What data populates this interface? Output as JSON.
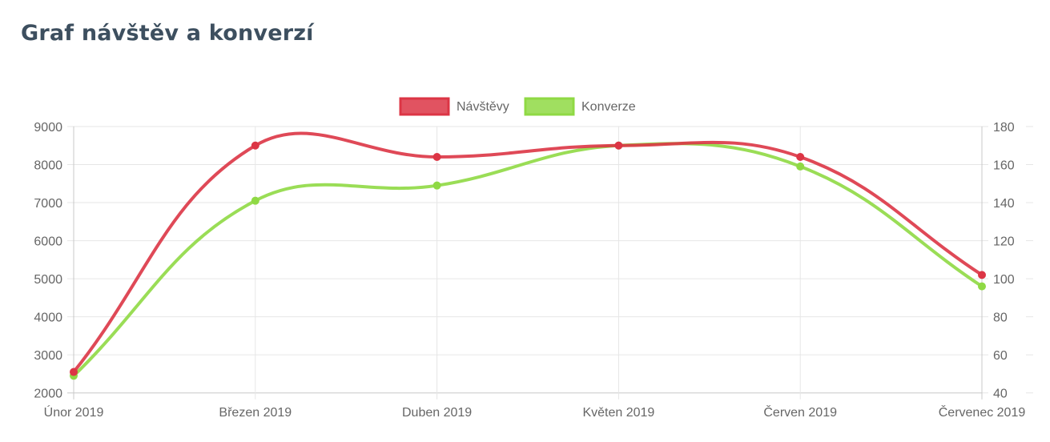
{
  "title": "Graf návštěv a konverzí",
  "chart_data": {
    "type": "line",
    "categories": [
      "Únor 2019",
      "Březen 2019",
      "Duben 2019",
      "Květen 2019",
      "Červen 2019",
      "Červenec 2019"
    ],
    "series": [
      {
        "name": "Návštěvy",
        "axis": "left",
        "color": "#dc3545",
        "values": [
          2550,
          8500,
          8200,
          8500,
          8200,
          5100
        ]
      },
      {
        "name": "Konverze",
        "axis": "right",
        "color": "#8fd944",
        "values": [
          49,
          141,
          149,
          170,
          159,
          96
        ]
      }
    ],
    "y_left": {
      "min": 2000,
      "max": 9000,
      "ticks": [
        "9000",
        "8000",
        "7000",
        "6000",
        "5000",
        "4000",
        "3000",
        "2000"
      ]
    },
    "y_right": {
      "min": 40,
      "max": 180,
      "ticks": [
        "180",
        "160",
        "140",
        "120",
        "100",
        "80",
        "60",
        "40"
      ]
    },
    "legend": "top-center",
    "grid": true
  }
}
